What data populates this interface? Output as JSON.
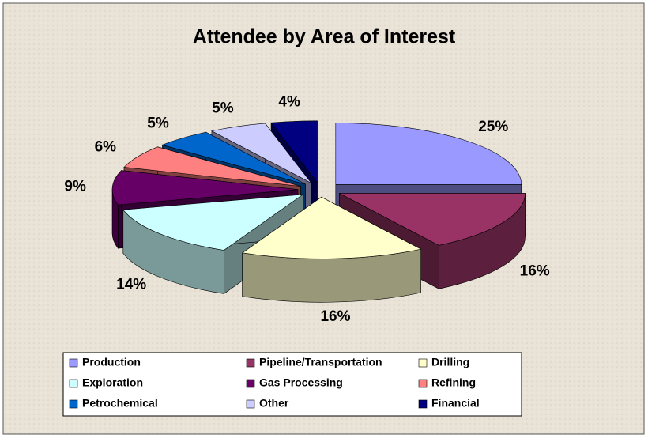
{
  "chart_data": {
    "type": "pie",
    "title": "Attendee by Area of Interest",
    "categories": [
      "Production",
      "Pipeline/Transportation",
      "Drilling",
      "Exploration",
      "Gas Processing",
      "Refining",
      "Petrochemical",
      "Other",
      "Financial"
    ],
    "values": [
      25,
      16,
      16,
      14,
      9,
      6,
      5,
      5,
      4
    ],
    "value_labels": [
      "25%",
      "16%",
      "16%",
      "14%",
      "9%",
      "6%",
      "5%",
      "5%",
      "4%"
    ],
    "colors": [
      "#9999ff",
      "#993366",
      "#ffffcc",
      "#ccffff",
      "#660066",
      "#ff8080",
      "#0066cc",
      "#ccccff",
      "#000080"
    ],
    "legend": "bottom"
  }
}
